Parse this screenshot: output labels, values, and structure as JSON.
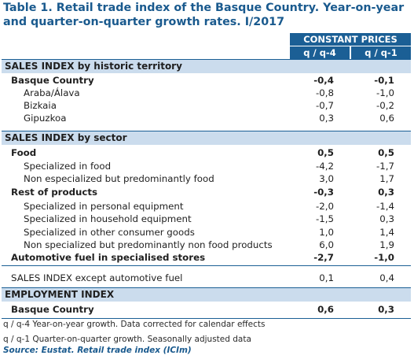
{
  "title": "Table 1. Retail trade index of the Basque Country. Year-on-year and quarter-on-quarter growth rates. I/2017",
  "header": {
    "group": "CONSTANT PRICES",
    "col1": "q / q-4",
    "col2": "q / q-1"
  },
  "sections": {
    "territory": "SALES INDEX by historic territory",
    "sector": "SALES INDEX by sector",
    "employment": "EMPLOYMENT INDEX"
  },
  "rows": {
    "basque": {
      "label": "Basque Country",
      "v1": "-0,4",
      "v2": "-0,1"
    },
    "araba": {
      "label": "Araba/Álava",
      "v1": "-0,8",
      "v2": "-1,0"
    },
    "bizkaia": {
      "label": "Bizkaia",
      "v1": "-0,7",
      "v2": "-0,2"
    },
    "gipuzkoa": {
      "label": "Gipuzkoa",
      "v1": "0,3",
      "v2": "0,6"
    },
    "food": {
      "label": "Food",
      "v1": "0,5",
      "v2": "0,5"
    },
    "spec_food": {
      "label": "Specialized in food",
      "v1": "-4,2",
      "v2": "-1,7"
    },
    "nonspec_food": {
      "label": "Non especialized but predominantly food",
      "v1": "3,0",
      "v2": "1,7"
    },
    "rest": {
      "label": "Rest of products",
      "v1": "-0,3",
      "v2": "0,3"
    },
    "personal": {
      "label": "Specialized in personal equipment",
      "v1": "-2,0",
      "v2": "-1,4"
    },
    "household": {
      "label": "Specialized in household equipment",
      "v1": "-1,5",
      "v2": "0,3"
    },
    "other": {
      "label": "Specialized in other consumer goods",
      "v1": "1,0",
      "v2": "1,4"
    },
    "nonspec_nonfood": {
      "label": "Non specialized but predominantly non food products",
      "v1": "6,0",
      "v2": "1,9"
    },
    "fuel": {
      "label": "Automotive fuel in specialised stores",
      "v1": "-2,7",
      "v2": "-1,0"
    },
    "except_fuel": {
      "label": "SALES INDEX except automotive fuel",
      "v1": "0,1",
      "v2": "0,4"
    },
    "emp_basque": {
      "label": "Basque Country",
      "v1": "0,6",
      "v2": "0,3"
    }
  },
  "notes": {
    "n1": "q / q-4 Year-on-year growth. Data corrected for calendar effects",
    "n2": "q / q-1 Quarter-on-quarter growth. Seasonally adjusted data",
    "source": "Source: Eustat. Retail trade index (ICIm)"
  }
}
